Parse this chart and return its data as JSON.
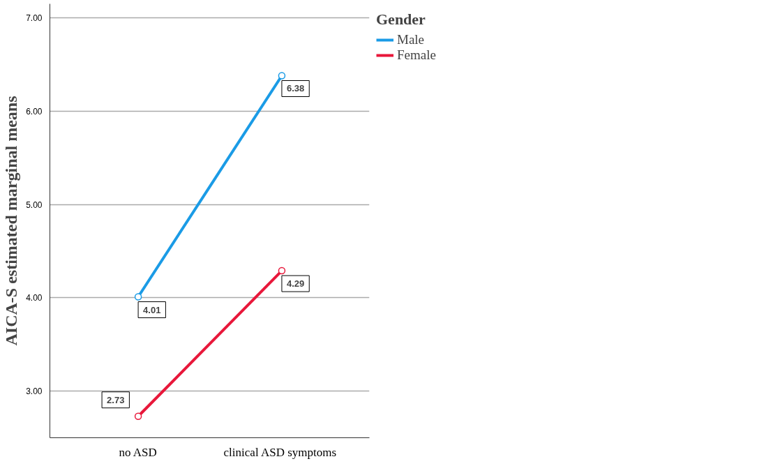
{
  "chart_data": {
    "type": "line",
    "ylabel": "AICA-S estimated marginal means",
    "legend_title": "Gender",
    "categories": [
      "no ASD",
      "clinical  ASD symptoms"
    ],
    "series": [
      {
        "name": "Male",
        "color": "#1a9be6",
        "values": [
          4.01,
          6.38
        ]
      },
      {
        "name": "Female",
        "color": "#e8173a",
        "values": [
          2.73,
          4.29
        ]
      }
    ],
    "ylim": [
      2.5,
      7.15
    ],
    "yticks": [
      {
        "value": 3,
        "label": "3.00"
      },
      {
        "value": 4,
        "label": "4.00"
      },
      {
        "value": 5,
        "label": "5.00"
      },
      {
        "value": 6,
        "label": "6.00"
      },
      {
        "value": 7,
        "label": "7.00"
      }
    ],
    "grid": "y",
    "legend": "top right",
    "marker": "circle",
    "line_style": "solid",
    "data_labels": true
  }
}
